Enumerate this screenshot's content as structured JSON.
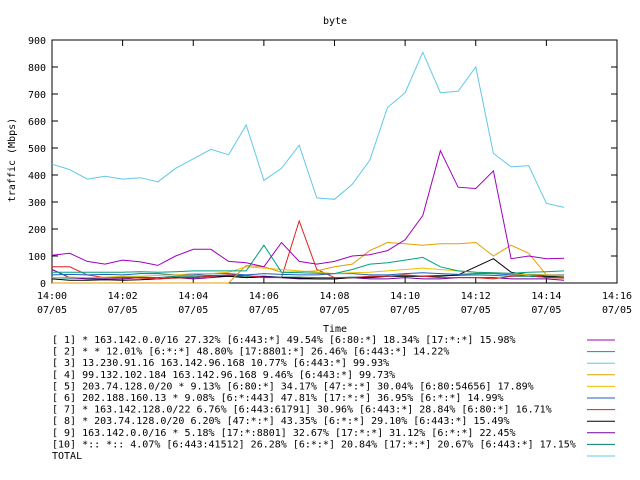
{
  "chart_data": {
    "type": "line",
    "title": "byte",
    "xlabel": "Time",
    "ylabel": "traffic (Mbps)",
    "ylim": [
      0,
      900
    ],
    "yticks": [
      0,
      100,
      200,
      300,
      400,
      500,
      600,
      700,
      800,
      900
    ],
    "xlim": [
      "14:00",
      "14:16"
    ],
    "xticks": [
      {
        "time": "14:00",
        "date": "07/05"
      },
      {
        "time": "14:02",
        "date": "07/05"
      },
      {
        "time": "14:04",
        "date": "07/05"
      },
      {
        "time": "14:06",
        "date": "07/05"
      },
      {
        "time": "14:08",
        "date": "07/05"
      },
      {
        "time": "14:10",
        "date": "07/05"
      },
      {
        "time": "14:12",
        "date": "07/05"
      },
      {
        "time": "14:14",
        "date": "07/05"
      },
      {
        "time": "14:16",
        "date": "07/05"
      }
    ],
    "grid": false,
    "legend_position": "bottom",
    "x": [
      "14:00:00",
      "14:00:30",
      "14:01:00",
      "14:01:30",
      "14:02:00",
      "14:02:30",
      "14:03:00",
      "14:03:30",
      "14:04:00",
      "14:04:30",
      "14:05:00",
      "14:05:30",
      "14:06:00",
      "14:06:30",
      "14:07:00",
      "14:07:30",
      "14:08:00",
      "14:08:30",
      "14:09:00",
      "14:09:30",
      "14:10:00",
      "14:10:30",
      "14:11:00",
      "14:11:30",
      "14:12:00",
      "14:12:30",
      "14:13:00",
      "14:13:30",
      "14:14:00",
      "14:14:30"
    ],
    "series": [
      {
        "name": "[ 1] * 163.142.0.0/16 27.32%  [6:443:*] 49.54% [6:80:*] 18.34% [17:*:*] 15.98%",
        "color": "#a000c0",
        "values": [
          103,
          110,
          80,
          70,
          85,
          78,
          65,
          100,
          125,
          125,
          80,
          75,
          60,
          150,
          80,
          70,
          80,
          100,
          105,
          120,
          160,
          250,
          490,
          355,
          350,
          415,
          90,
          100,
          90,
          92
        ]
      },
      {
        "name": "[ 2] * * 12.01%  [6:*:*] 48.80% [17:8801:*] 26.46% [6:443:*] 14.22%",
        "color": "#00a080",
        "values": [
          40,
          40,
          40,
          40,
          40,
          42,
          40,
          42,
          45,
          45,
          45,
          45,
          140,
          40,
          38,
          36,
          35,
          50,
          70,
          75,
          85,
          95,
          60,
          45,
          40,
          38,
          36,
          40,
          42,
          45
        ]
      },
      {
        "name": "[ 3] 13.230.91.16 163.142.96.168 10.77%  [6:443:*] 99.93%",
        "color": "#60c8e8",
        "values": [
          440,
          420,
          385,
          395,
          385,
          390,
          375,
          425,
          460,
          495,
          475,
          585,
          380,
          425,
          510,
          315,
          310,
          365,
          455,
          650,
          705,
          855,
          705,
          710,
          800,
          480,
          430,
          435,
          295,
          280
        ]
      },
      {
        "name": "[ 4] 99.132.102.184 163.142.96.168 9.46%  [6:443:*] 99.73%",
        "color": "#e0a000",
        "values": [
          0,
          0,
          0,
          0,
          0,
          0,
          0,
          0,
          0,
          0,
          0,
          65,
          60,
          40,
          42,
          45,
          60,
          70,
          120,
          150,
          145,
          140,
          145,
          145,
          150,
          100,
          140,
          110,
          30,
          25
        ]
      },
      {
        "name": "[ 5] 203.74.128.0/20 * 9.13%  [6:80:*] 34.17% [47:*:*] 30.04% [6:80:54656] 17.89%",
        "color": "#e8c000",
        "values": [
          20,
          22,
          20,
          22,
          25,
          25,
          28,
          30,
          35,
          35,
          40,
          60,
          55,
          50,
          45,
          40,
          35,
          38,
          40,
          45,
          50,
          55,
          50,
          45,
          40,
          38,
          35,
          30,
          30,
          28
        ]
      },
      {
        "name": "[ 6] 202.188.160.13 * 9.08%  [6:*:443] 47.81% [17:*:*] 36.95% [6:*:*] 14.99%",
        "color": "#2060c0",
        "values": [
          30,
          32,
          30,
          32,
          30,
          35,
          35,
          30,
          30,
          35,
          35,
          30,
          35,
          32,
          30,
          30,
          35,
          35,
          30,
          30,
          35,
          38,
          35,
          32,
          35,
          35,
          30,
          32,
          30,
          30
        ]
      },
      {
        "name": "[ 7] * 163.142.128.0/22 6.76%  [6:443:61791] 30.96% [6:443:*] 28.84% [6:80:*] 16.71%",
        "color": "#e02020",
        "values": [
          60,
          60,
          30,
          20,
          20,
          18,
          15,
          18,
          20,
          25,
          30,
          28,
          20,
          20,
          230,
          50,
          20,
          20,
          25,
          25,
          30,
          25,
          20,
          20,
          20,
          15,
          25,
          30,
          20,
          18
        ]
      },
      {
        "name": "[ 8] * 203.74.128.0/20 6.20%  [47:*:*] 43.35% [6:*:*] 29.10% [6:443:*] 15.49%",
        "color": "#000000",
        "values": [
          15,
          10,
          10,
          12,
          10,
          12,
          15,
          20,
          20,
          25,
          25,
          20,
          22,
          20,
          18,
          15,
          15,
          20,
          20,
          25,
          25,
          25,
          25,
          30,
          60,
          90,
          40,
          30,
          25,
          25
        ]
      },
      {
        "name": "[ 9] 163.142.0.0/16 * 5.18%  [17:*:8801] 32.67% [17:*:*] 31.12% [6:*:*] 22.45%",
        "color": "#7000a0",
        "values": [
          50,
          20,
          15,
          15,
          15,
          20,
          15,
          20,
          15,
          20,
          25,
          20,
          25,
          20,
          15,
          15,
          15,
          20,
          15,
          15,
          20,
          15,
          15,
          20,
          20,
          20,
          15,
          15,
          15,
          10
        ]
      },
      {
        "name": "[10] *:: *:: 4.07%  [6:443:41512] 26.28% [6:*:*] 20.84% [17:*:*] 20.67% [6:443:*] 17.15%",
        "color": "#008060",
        "values": [
          20,
          18,
          18,
          20,
          22,
          22,
          20,
          25,
          25,
          28,
          28,
          25,
          25,
          22,
          22,
          20,
          20,
          22,
          22,
          25,
          25,
          25,
          28,
          28,
          30,
          28,
          25,
          25,
          22,
          22
        ]
      }
    ],
    "total_label": "TOTAL",
    "total_color": "#60c8e8"
  }
}
